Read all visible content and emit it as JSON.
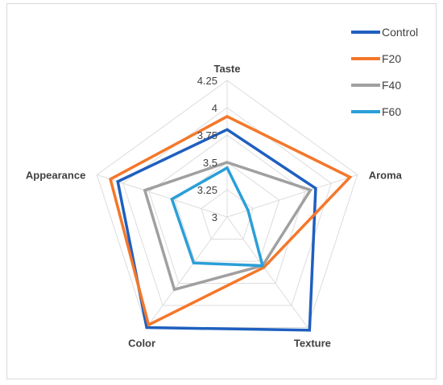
{
  "chart_data": {
    "type": "radar",
    "axes": [
      "Taste",
      "Aroma",
      "Texture",
      "Color",
      "Appearance"
    ],
    "rlim": [
      3,
      4.25
    ],
    "ticks": [
      "3",
      "3.25",
      "3.5",
      "3.75",
      "4",
      "4.25"
    ],
    "tick_values": [
      3,
      3.25,
      3.5,
      3.75,
      4,
      4.25
    ],
    "legend_position": "top-right",
    "grid": true,
    "series": [
      {
        "name": "Control",
        "color": "#1f5fbf",
        "values": [
          3.8,
          3.85,
          4.28,
          4.25,
          4.05
        ]
      },
      {
        "name": "F20",
        "color": "#f4772a",
        "values": [
          3.92,
          4.18,
          3.57,
          4.22,
          4.12
        ]
      },
      {
        "name": "F40",
        "color": "#a0a0a0",
        "values": [
          3.5,
          3.8,
          3.55,
          3.82,
          3.79
        ]
      },
      {
        "name": "F60",
        "color": "#2a9fd8",
        "values": [
          3.45,
          3.2,
          3.55,
          3.52,
          3.53
        ]
      }
    ]
  }
}
